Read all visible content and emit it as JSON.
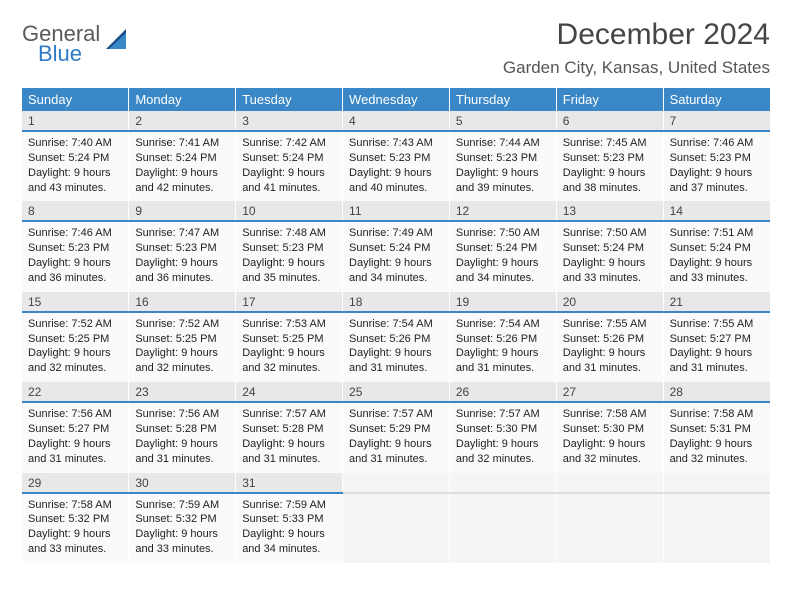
{
  "logo": {
    "line1": "General",
    "line2": "Blue"
  },
  "title": "December 2024",
  "location": "Garden City, Kansas, United States",
  "colors": {
    "header_bg": "#3a87c8",
    "header_fg": "#ffffff",
    "daynum_bg": "#e8e8e8",
    "daynum_border": "#3a87c8",
    "cell_bg": "#fafafa",
    "text": "#222222",
    "title_color": "#454545",
    "location_color": "#555555",
    "logo_general": "#5a5a5a",
    "logo_blue": "#2d7bc4"
  },
  "weekdays": [
    "Sunday",
    "Monday",
    "Tuesday",
    "Wednesday",
    "Thursday",
    "Friday",
    "Saturday"
  ],
  "weeks": [
    {
      "nums": [
        "1",
        "2",
        "3",
        "4",
        "5",
        "6",
        "7"
      ],
      "cells": [
        {
          "sunrise": "Sunrise: 7:40 AM",
          "sunset": "Sunset: 5:24 PM",
          "dayl": "Daylight: 9 hours and 43 minutes."
        },
        {
          "sunrise": "Sunrise: 7:41 AM",
          "sunset": "Sunset: 5:24 PM",
          "dayl": "Daylight: 9 hours and 42 minutes."
        },
        {
          "sunrise": "Sunrise: 7:42 AM",
          "sunset": "Sunset: 5:24 PM",
          "dayl": "Daylight: 9 hours and 41 minutes."
        },
        {
          "sunrise": "Sunrise: 7:43 AM",
          "sunset": "Sunset: 5:23 PM",
          "dayl": "Daylight: 9 hours and 40 minutes."
        },
        {
          "sunrise": "Sunrise: 7:44 AM",
          "sunset": "Sunset: 5:23 PM",
          "dayl": "Daylight: 9 hours and 39 minutes."
        },
        {
          "sunrise": "Sunrise: 7:45 AM",
          "sunset": "Sunset: 5:23 PM",
          "dayl": "Daylight: 9 hours and 38 minutes."
        },
        {
          "sunrise": "Sunrise: 7:46 AM",
          "sunset": "Sunset: 5:23 PM",
          "dayl": "Daylight: 9 hours and 37 minutes."
        }
      ]
    },
    {
      "nums": [
        "8",
        "9",
        "10",
        "11",
        "12",
        "13",
        "14"
      ],
      "cells": [
        {
          "sunrise": "Sunrise: 7:46 AM",
          "sunset": "Sunset: 5:23 PM",
          "dayl": "Daylight: 9 hours and 36 minutes."
        },
        {
          "sunrise": "Sunrise: 7:47 AM",
          "sunset": "Sunset: 5:23 PM",
          "dayl": "Daylight: 9 hours and 36 minutes."
        },
        {
          "sunrise": "Sunrise: 7:48 AM",
          "sunset": "Sunset: 5:23 PM",
          "dayl": "Daylight: 9 hours and 35 minutes."
        },
        {
          "sunrise": "Sunrise: 7:49 AM",
          "sunset": "Sunset: 5:24 PM",
          "dayl": "Daylight: 9 hours and 34 minutes."
        },
        {
          "sunrise": "Sunrise: 7:50 AM",
          "sunset": "Sunset: 5:24 PM",
          "dayl": "Daylight: 9 hours and 34 minutes."
        },
        {
          "sunrise": "Sunrise: 7:50 AM",
          "sunset": "Sunset: 5:24 PM",
          "dayl": "Daylight: 9 hours and 33 minutes."
        },
        {
          "sunrise": "Sunrise: 7:51 AM",
          "sunset": "Sunset: 5:24 PM",
          "dayl": "Daylight: 9 hours and 33 minutes."
        }
      ]
    },
    {
      "nums": [
        "15",
        "16",
        "17",
        "18",
        "19",
        "20",
        "21"
      ],
      "cells": [
        {
          "sunrise": "Sunrise: 7:52 AM",
          "sunset": "Sunset: 5:25 PM",
          "dayl": "Daylight: 9 hours and 32 minutes."
        },
        {
          "sunrise": "Sunrise: 7:52 AM",
          "sunset": "Sunset: 5:25 PM",
          "dayl": "Daylight: 9 hours and 32 minutes."
        },
        {
          "sunrise": "Sunrise: 7:53 AM",
          "sunset": "Sunset: 5:25 PM",
          "dayl": "Daylight: 9 hours and 32 minutes."
        },
        {
          "sunrise": "Sunrise: 7:54 AM",
          "sunset": "Sunset: 5:26 PM",
          "dayl": "Daylight: 9 hours and 31 minutes."
        },
        {
          "sunrise": "Sunrise: 7:54 AM",
          "sunset": "Sunset: 5:26 PM",
          "dayl": "Daylight: 9 hours and 31 minutes."
        },
        {
          "sunrise": "Sunrise: 7:55 AM",
          "sunset": "Sunset: 5:26 PM",
          "dayl": "Daylight: 9 hours and 31 minutes."
        },
        {
          "sunrise": "Sunrise: 7:55 AM",
          "sunset": "Sunset: 5:27 PM",
          "dayl": "Daylight: 9 hours and 31 minutes."
        }
      ]
    },
    {
      "nums": [
        "22",
        "23",
        "24",
        "25",
        "26",
        "27",
        "28"
      ],
      "cells": [
        {
          "sunrise": "Sunrise: 7:56 AM",
          "sunset": "Sunset: 5:27 PM",
          "dayl": "Daylight: 9 hours and 31 minutes."
        },
        {
          "sunrise": "Sunrise: 7:56 AM",
          "sunset": "Sunset: 5:28 PM",
          "dayl": "Daylight: 9 hours and 31 minutes."
        },
        {
          "sunrise": "Sunrise: 7:57 AM",
          "sunset": "Sunset: 5:28 PM",
          "dayl": "Daylight: 9 hours and 31 minutes."
        },
        {
          "sunrise": "Sunrise: 7:57 AM",
          "sunset": "Sunset: 5:29 PM",
          "dayl": "Daylight: 9 hours and 31 minutes."
        },
        {
          "sunrise": "Sunrise: 7:57 AM",
          "sunset": "Sunset: 5:30 PM",
          "dayl": "Daylight: 9 hours and 32 minutes."
        },
        {
          "sunrise": "Sunrise: 7:58 AM",
          "sunset": "Sunset: 5:30 PM",
          "dayl": "Daylight: 9 hours and 32 minutes."
        },
        {
          "sunrise": "Sunrise: 7:58 AM",
          "sunset": "Sunset: 5:31 PM",
          "dayl": "Daylight: 9 hours and 32 minutes."
        }
      ]
    },
    {
      "nums": [
        "29",
        "30",
        "31",
        "",
        "",
        "",
        ""
      ],
      "cells": [
        {
          "sunrise": "Sunrise: 7:58 AM",
          "sunset": "Sunset: 5:32 PM",
          "dayl": "Daylight: 9 hours and 33 minutes."
        },
        {
          "sunrise": "Sunrise: 7:59 AM",
          "sunset": "Sunset: 5:32 PM",
          "dayl": "Daylight: 9 hours and 33 minutes."
        },
        {
          "sunrise": "Sunrise: 7:59 AM",
          "sunset": "Sunset: 5:33 PM",
          "dayl": "Daylight: 9 hours and 34 minutes."
        },
        null,
        null,
        null,
        null
      ]
    }
  ]
}
